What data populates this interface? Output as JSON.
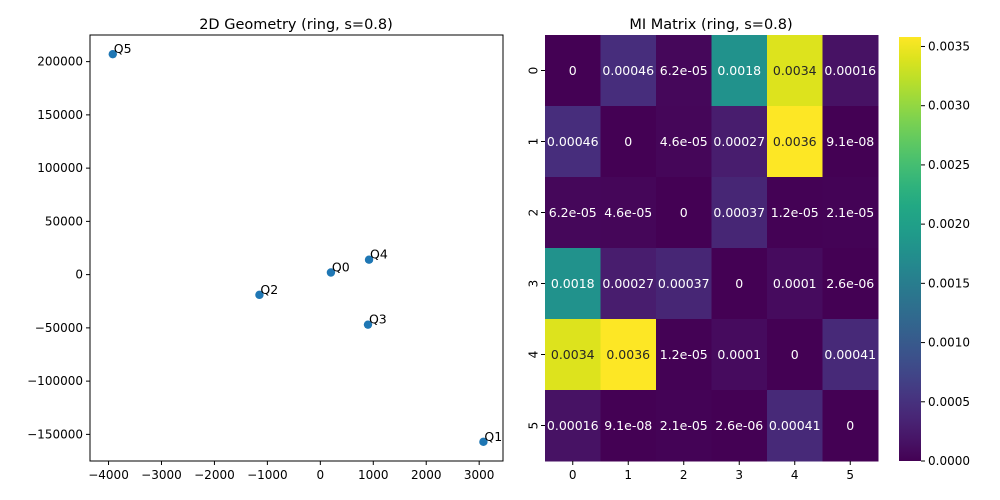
{
  "chart_data": [
    {
      "type": "scatter",
      "title": "2D Geometry (ring, s=0.8)",
      "xlabel": "",
      "ylabel": "",
      "xlim": [
        -4350,
        3450
      ],
      "ylim": [
        -175000,
        225000
      ],
      "xticks": [
        -4000,
        -3000,
        -2000,
        -1000,
        0,
        1000,
        2000,
        3000
      ],
      "yticks": [
        -150000,
        -100000,
        -50000,
        0,
        50000,
        100000,
        150000,
        200000
      ],
      "point_color": "#1f77b4",
      "grid": false,
      "points": [
        {
          "label": "Q0",
          "x": 200,
          "y": 2000
        },
        {
          "label": "Q1",
          "x": 3080,
          "y": -157000
        },
        {
          "label": "Q2",
          "x": -1150,
          "y": -19000
        },
        {
          "label": "Q3",
          "x": 900,
          "y": -47000
        },
        {
          "label": "Q4",
          "x": 920,
          "y": 14000
        },
        {
          "label": "Q5",
          "x": -3920,
          "y": 207000
        }
      ]
    },
    {
      "type": "heatmap",
      "title": "MI Matrix (ring, s=0.8)",
      "colormap": "viridis",
      "x_categories": [
        "0",
        "1",
        "2",
        "3",
        "4",
        "5"
      ],
      "y_categories": [
        "0",
        "1",
        "2",
        "3",
        "4",
        "5"
      ],
      "vmin": 0,
      "vmax": 0.00358,
      "colorbar_ticks": [
        0.0,
        0.0005,
        0.001,
        0.0015,
        0.002,
        0.0025,
        0.003,
        0.0035
      ],
      "colorbar_labels": [
        "0.0000",
        "0.0005",
        "0.0010",
        "0.0015",
        "0.0020",
        "0.0025",
        "0.0030",
        "0.0035"
      ],
      "values": [
        [
          0,
          0.00046,
          6.2e-05,
          0.0018,
          0.0034,
          0.00016
        ],
        [
          0.00046,
          0,
          4.6e-05,
          0.00027,
          0.0036,
          9.1e-08
        ],
        [
          6.2e-05,
          4.6e-05,
          0,
          0.00037,
          1.2e-05,
          2.1e-05
        ],
        [
          0.0018,
          0.00027,
          0.00037,
          0,
          0.0001,
          2.6e-06
        ],
        [
          0.0034,
          0.0036,
          1.2e-05,
          0.0001,
          0,
          0.00041
        ],
        [
          0.00016,
          9.1e-08,
          2.1e-05,
          2.6e-06,
          0.00041,
          0
        ]
      ],
      "annotations": [
        [
          "0",
          "0.00046",
          "6.2e-05",
          "0.0018",
          "0.0034",
          "0.00016"
        ],
        [
          "0.00046",
          "0",
          "4.6e-05",
          "0.00027",
          "0.0036",
          "9.1e-08"
        ],
        [
          "6.2e-05",
          "4.6e-05",
          "0",
          "0.00037",
          "1.2e-05",
          "2.1e-05"
        ],
        [
          "0.0018",
          "0.00027",
          "0.00037",
          "0",
          "0.0001",
          "2.6e-06"
        ],
        [
          "0.0034",
          "0.0036",
          "1.2e-05",
          "0.0001",
          "0",
          "0.00041"
        ],
        [
          "0.00016",
          "9.1e-08",
          "2.1e-05",
          "2.6e-06",
          "0.00041",
          "0"
        ]
      ]
    }
  ]
}
